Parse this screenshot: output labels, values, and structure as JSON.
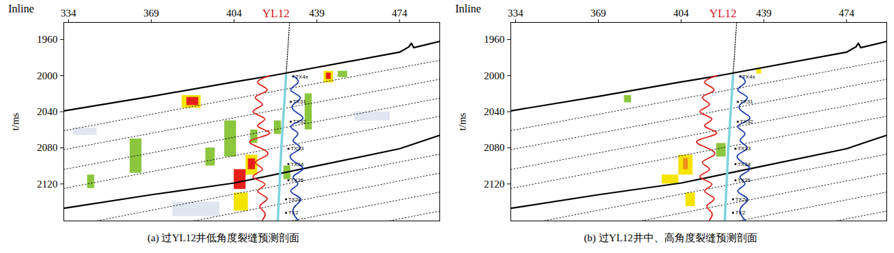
{
  "chart_data": [
    {
      "type": "seismic_section",
      "title": "(a) 过YL12井低角度裂缝预测剖面",
      "x_label": "Inline",
      "y_label": "t/ms",
      "xlim": [
        332,
        491
      ],
      "xticks": [
        334,
        369,
        404,
        439,
        474
      ],
      "ylim": [
        1941,
        2161
      ],
      "yticks": [
        1960,
        2000,
        2040,
        2080,
        2120
      ],
      "well": {
        "name": "YL12",
        "color": "#d0202a",
        "path": [
          [
            427.5,
            1941
          ],
          [
            426,
            2000
          ],
          [
            424,
            2080
          ],
          [
            422.5,
            2161
          ]
        ],
        "track": [
          [
            426,
            2000
          ],
          [
            424,
            2080
          ],
          [
            422.5,
            2161
          ]
        ]
      },
      "horizons": [
        {
          "color": "#000000",
          "line_style": "solid",
          "points": [
            [
              332,
              2039
            ],
            [
              369,
              2023
            ],
            [
              404,
              2007
            ],
            [
              420,
              2000
            ],
            [
              474,
              1974
            ],
            [
              478,
              1968
            ],
            [
              479,
              1964
            ],
            [
              480,
              1969
            ],
            [
              491,
              1962
            ]
          ]
        },
        {
          "color": "#000000",
          "line_style": "solid",
          "points": [
            [
              332,
              2147
            ],
            [
              369,
              2132
            ],
            [
              404,
              2119
            ],
            [
              439,
              2100
            ],
            [
              474,
              2081
            ],
            [
              491,
              2066
            ]
          ]
        },
        {
          "color": "#000000",
          "line_style": "dotted",
          "points": [
            [
              332,
              2061
            ],
            [
              491,
              1983
            ]
          ]
        },
        {
          "color": "#000000",
          "line_style": "dotted",
          "points": [
            [
              332,
              2082
            ],
            [
              491,
              2004
            ]
          ]
        },
        {
          "color": "#000000",
          "line_style": "dotted",
          "points": [
            [
              332,
              2104
            ],
            [
              491,
              2025
            ]
          ]
        },
        {
          "color": "#000000",
          "line_style": "dotted",
          "points": [
            [
              332,
              2125
            ],
            [
              491,
              2045
            ]
          ]
        },
        {
          "color": "#000000",
          "line_style": "dotted",
          "points": [
            [
              332,
              2168
            ],
            [
              491,
              2087
            ]
          ]
        },
        {
          "color": "#000000",
          "line_style": "dotted",
          "points": [
            [
              332,
              2189
            ],
            [
              491,
              2108
            ]
          ]
        },
        {
          "color": "#000000",
          "line_style": "dotted",
          "points": [
            [
              332,
              2210
            ],
            [
              491,
              2129
            ]
          ]
        },
        {
          "color": "#000000",
          "line_style": "dotted",
          "points": [
            [
              332,
              2231
            ],
            [
              491,
              2150
            ]
          ]
        }
      ],
      "logs": [
        {
          "color": "#e0241b",
          "t": [
            2000,
            2008,
            2016,
            2024,
            2032,
            2040,
            2048,
            2056,
            2064,
            2072,
            2080,
            2088,
            2096,
            2104,
            2112,
            2120,
            2128,
            2136,
            2144,
            2152,
            2160
          ],
          "values": [
            419,
            414,
            418,
            413,
            416,
            412,
            417,
            414,
            419,
            411,
            415,
            418,
            413,
            416,
            412,
            417,
            414,
            418,
            415,
            417,
            416
          ]
        },
        {
          "color": "#1f3fb0",
          "t": [
            2000,
            2008,
            2016,
            2024,
            2032,
            2040,
            2048,
            2056,
            2064,
            2072,
            2080,
            2088,
            2096,
            2104,
            2112,
            2120,
            2128,
            2136,
            2144,
            2152,
            2160
          ],
          "values": [
            429,
            431,
            428,
            432,
            429,
            430,
            433,
            428,
            431,
            429,
            432,
            428,
            430,
            433,
            429,
            431,
            428,
            432,
            430,
            429,
            431
          ]
        }
      ],
      "fractures": [
        {
          "x": [
            336,
            346
          ],
          "t": [
            2058,
            2066
          ],
          "color": "#dfe6f0"
        },
        {
          "x": [
            378,
            398
          ],
          "t": [
            2140,
            2156
          ],
          "color": "#dfe6f0"
        },
        {
          "x": [
            455,
            470
          ],
          "t": [
            2040,
            2050
          ],
          "color": "#dfe6f0"
        },
        {
          "x": [
            342,
            345
          ],
          "t": [
            2110,
            2125
          ],
          "color": "#8cc63f"
        },
        {
          "x": [
            360,
            365
          ],
          "t": [
            2070,
            2108
          ],
          "color": "#8cc63f"
        },
        {
          "x": [
            382,
            390
          ],
          "t": [
            2022,
            2036
          ],
          "color": "#f5e300"
        },
        {
          "x": [
            384,
            389
          ],
          "t": [
            2024,
            2033
          ],
          "color": "#e8201c"
        },
        {
          "x": [
            392,
            396
          ],
          "t": [
            2080,
            2100
          ],
          "color": "#8cc63f"
        },
        {
          "x": [
            400,
            405
          ],
          "t": [
            2050,
            2090
          ],
          "color": "#8cc63f"
        },
        {
          "x": [
            411,
            414
          ],
          "t": [
            2060,
            2075
          ],
          "color": "#8cc63f"
        },
        {
          "x": [
            409,
            414
          ],
          "t": [
            2088,
            2110
          ],
          "color": "#f5e300"
        },
        {
          "x": [
            410,
            413
          ],
          "t": [
            2092,
            2104
          ],
          "color": "#e8201c"
        },
        {
          "x": [
            404,
            409
          ],
          "t": [
            2104,
            2126
          ],
          "color": "#e8201c"
        },
        {
          "x": [
            404,
            410
          ],
          "t": [
            2130,
            2150
          ],
          "color": "#f5e300"
        },
        {
          "x": [
            421,
            424
          ],
          "t": [
            2050,
            2065
          ],
          "color": "#8cc63f"
        },
        {
          "x": [
            425,
            428
          ],
          "t": [
            2100,
            2115
          ],
          "color": "#8cc63f"
        },
        {
          "x": [
            434,
            437
          ],
          "t": [
            2020,
            2060
          ],
          "color": "#8cc63f"
        },
        {
          "x": [
            442,
            446
          ],
          "t": [
            1995,
            2008
          ],
          "color": "#f5e300"
        },
        {
          "x": [
            443,
            445
          ],
          "t": [
            1997,
            2004
          ],
          "color": "#e8201c"
        },
        {
          "x": [
            448,
            452
          ],
          "t": [
            1995,
            2002
          ],
          "color": "#8cc63f"
        }
      ],
      "markers": [
        {
          "label": "TX4x",
          "x": 429,
          "t": 2001
        },
        {
          "label": "TX31",
          "x": 428,
          "t": 2029
        },
        {
          "label": "TX32",
          "x": 428,
          "t": 2051
        },
        {
          "label": "TX33",
          "x": 427,
          "t": 2081
        },
        {
          "label": "TX34",
          "x": 427,
          "t": 2098
        },
        {
          "label": "TX35",
          "x": 427,
          "t": 2116
        },
        {
          "label": "TX2s",
          "x": 426,
          "t": 2137
        },
        {
          "label": "TX2",
          "x": 426,
          "t": 2152
        }
      ]
    },
    {
      "type": "seismic_section",
      "title": "(b) 过YL12井中、高角度裂缝预测剖面",
      "x_label": "Inline",
      "y_label": "t/ms",
      "xlim": [
        332,
        491
      ],
      "xticks": [
        334,
        369,
        404,
        439,
        474
      ],
      "ylim": [
        1941,
        2161
      ],
      "yticks": [
        1960,
        2000,
        2040,
        2080,
        2120
      ],
      "well": {
        "name": "YL12",
        "color": "#d0202a",
        "path": [
          [
            427.5,
            1941
          ],
          [
            426,
            2000
          ],
          [
            424,
            2080
          ],
          [
            422.5,
            2161
          ]
        ],
        "track": [
          [
            426,
            2000
          ],
          [
            424,
            2080
          ],
          [
            422.5,
            2161
          ]
        ]
      },
      "horizons": [
        {
          "color": "#000000",
          "line_style": "solid",
          "points": [
            [
              332,
              2039
            ],
            [
              369,
              2023
            ],
            [
              404,
              2007
            ],
            [
              420,
              2000
            ],
            [
              474,
              1974
            ],
            [
              478,
              1968
            ],
            [
              479,
              1964
            ],
            [
              480,
              1969
            ],
            [
              491,
              1962
            ]
          ]
        },
        {
          "color": "#000000",
          "line_style": "solid",
          "points": [
            [
              332,
              2147
            ],
            [
              369,
              2132
            ],
            [
              404,
              2119
            ],
            [
              439,
              2100
            ],
            [
              474,
              2081
            ],
            [
              491,
              2066
            ]
          ]
        },
        {
          "color": "#000000",
          "line_style": "dotted",
          "points": [
            [
              332,
              2061
            ],
            [
              491,
              1983
            ]
          ]
        },
        {
          "color": "#000000",
          "line_style": "dotted",
          "points": [
            [
              332,
              2082
            ],
            [
              491,
              2004
            ]
          ]
        },
        {
          "color": "#000000",
          "line_style": "dotted",
          "points": [
            [
              332,
              2104
            ],
            [
              491,
              2025
            ]
          ]
        },
        {
          "color": "#000000",
          "line_style": "dotted",
          "points": [
            [
              332,
              2125
            ],
            [
              491,
              2045
            ]
          ]
        },
        {
          "color": "#000000",
          "line_style": "dotted",
          "points": [
            [
              332,
              2168
            ],
            [
              491,
              2087
            ]
          ]
        },
        {
          "color": "#000000",
          "line_style": "dotted",
          "points": [
            [
              332,
              2189
            ],
            [
              491,
              2108
            ]
          ]
        },
        {
          "color": "#000000",
          "line_style": "dotted",
          "points": [
            [
              332,
              2210
            ],
            [
              491,
              2129
            ]
          ]
        },
        {
          "color": "#000000",
          "line_style": "dotted",
          "points": [
            [
              332,
              2231
            ],
            [
              491,
              2150
            ]
          ]
        }
      ],
      "logs": [
        {
          "color": "#e0241b",
          "t": [
            2000,
            2008,
            2016,
            2024,
            2032,
            2040,
            2048,
            2056,
            2064,
            2072,
            2080,
            2088,
            2096,
            2104,
            2112,
            2120,
            2128,
            2136,
            2144,
            2152,
            2160
          ],
          "values": [
            419,
            414,
            418,
            413,
            416,
            412,
            417,
            414,
            419,
            411,
            415,
            418,
            413,
            416,
            412,
            417,
            414,
            418,
            415,
            417,
            416
          ]
        },
        {
          "color": "#1f3fb0",
          "t": [
            2000,
            2008,
            2016,
            2024,
            2032,
            2040,
            2048,
            2056,
            2064,
            2072,
            2080,
            2088,
            2096,
            2104,
            2112,
            2120,
            2128,
            2136,
            2144,
            2152,
            2160
          ],
          "values": [
            429,
            431,
            428,
            432,
            429,
            430,
            433,
            428,
            431,
            429,
            432,
            428,
            430,
            433,
            429,
            431,
            428,
            432,
            430,
            429,
            431
          ]
        }
      ],
      "fractures": [
        {
          "x": [
            380,
            383
          ],
          "t": [
            2022,
            2030
          ],
          "color": "#8cc63f"
        },
        {
          "x": [
            419,
            423
          ],
          "t": [
            2075,
            2090
          ],
          "color": "#8cc63f"
        },
        {
          "x": [
            403,
            409
          ],
          "t": [
            2088,
            2110
          ],
          "color": "#f5e300"
        },
        {
          "x": [
            405,
            407
          ],
          "t": [
            2092,
            2104
          ],
          "color": "#f08c1a"
        },
        {
          "x": [
            396,
            403
          ],
          "t": [
            2110,
            2120
          ],
          "color": "#f5e300"
        },
        {
          "x": [
            406,
            410
          ],
          "t": [
            2130,
            2145
          ],
          "color": "#f5e300"
        },
        {
          "x": [
            436,
            438
          ],
          "t": [
            1993,
            1998
          ],
          "color": "#f5e300"
        }
      ],
      "markers": [
        {
          "label": "TX4x",
          "x": 429,
          "t": 2001
        },
        {
          "label": "TX31",
          "x": 428,
          "t": 2029
        },
        {
          "label": "TX32",
          "x": 428,
          "t": 2051
        },
        {
          "label": "TX33",
          "x": 427,
          "t": 2081
        },
        {
          "label": "TX34",
          "x": 427,
          "t": 2098
        },
        {
          "label": "TX35",
          "x": 427,
          "t": 2116
        },
        {
          "label": "TX2s",
          "x": 426,
          "t": 2137
        },
        {
          "label": "TX2",
          "x": 426,
          "t": 2152
        }
      ]
    }
  ]
}
